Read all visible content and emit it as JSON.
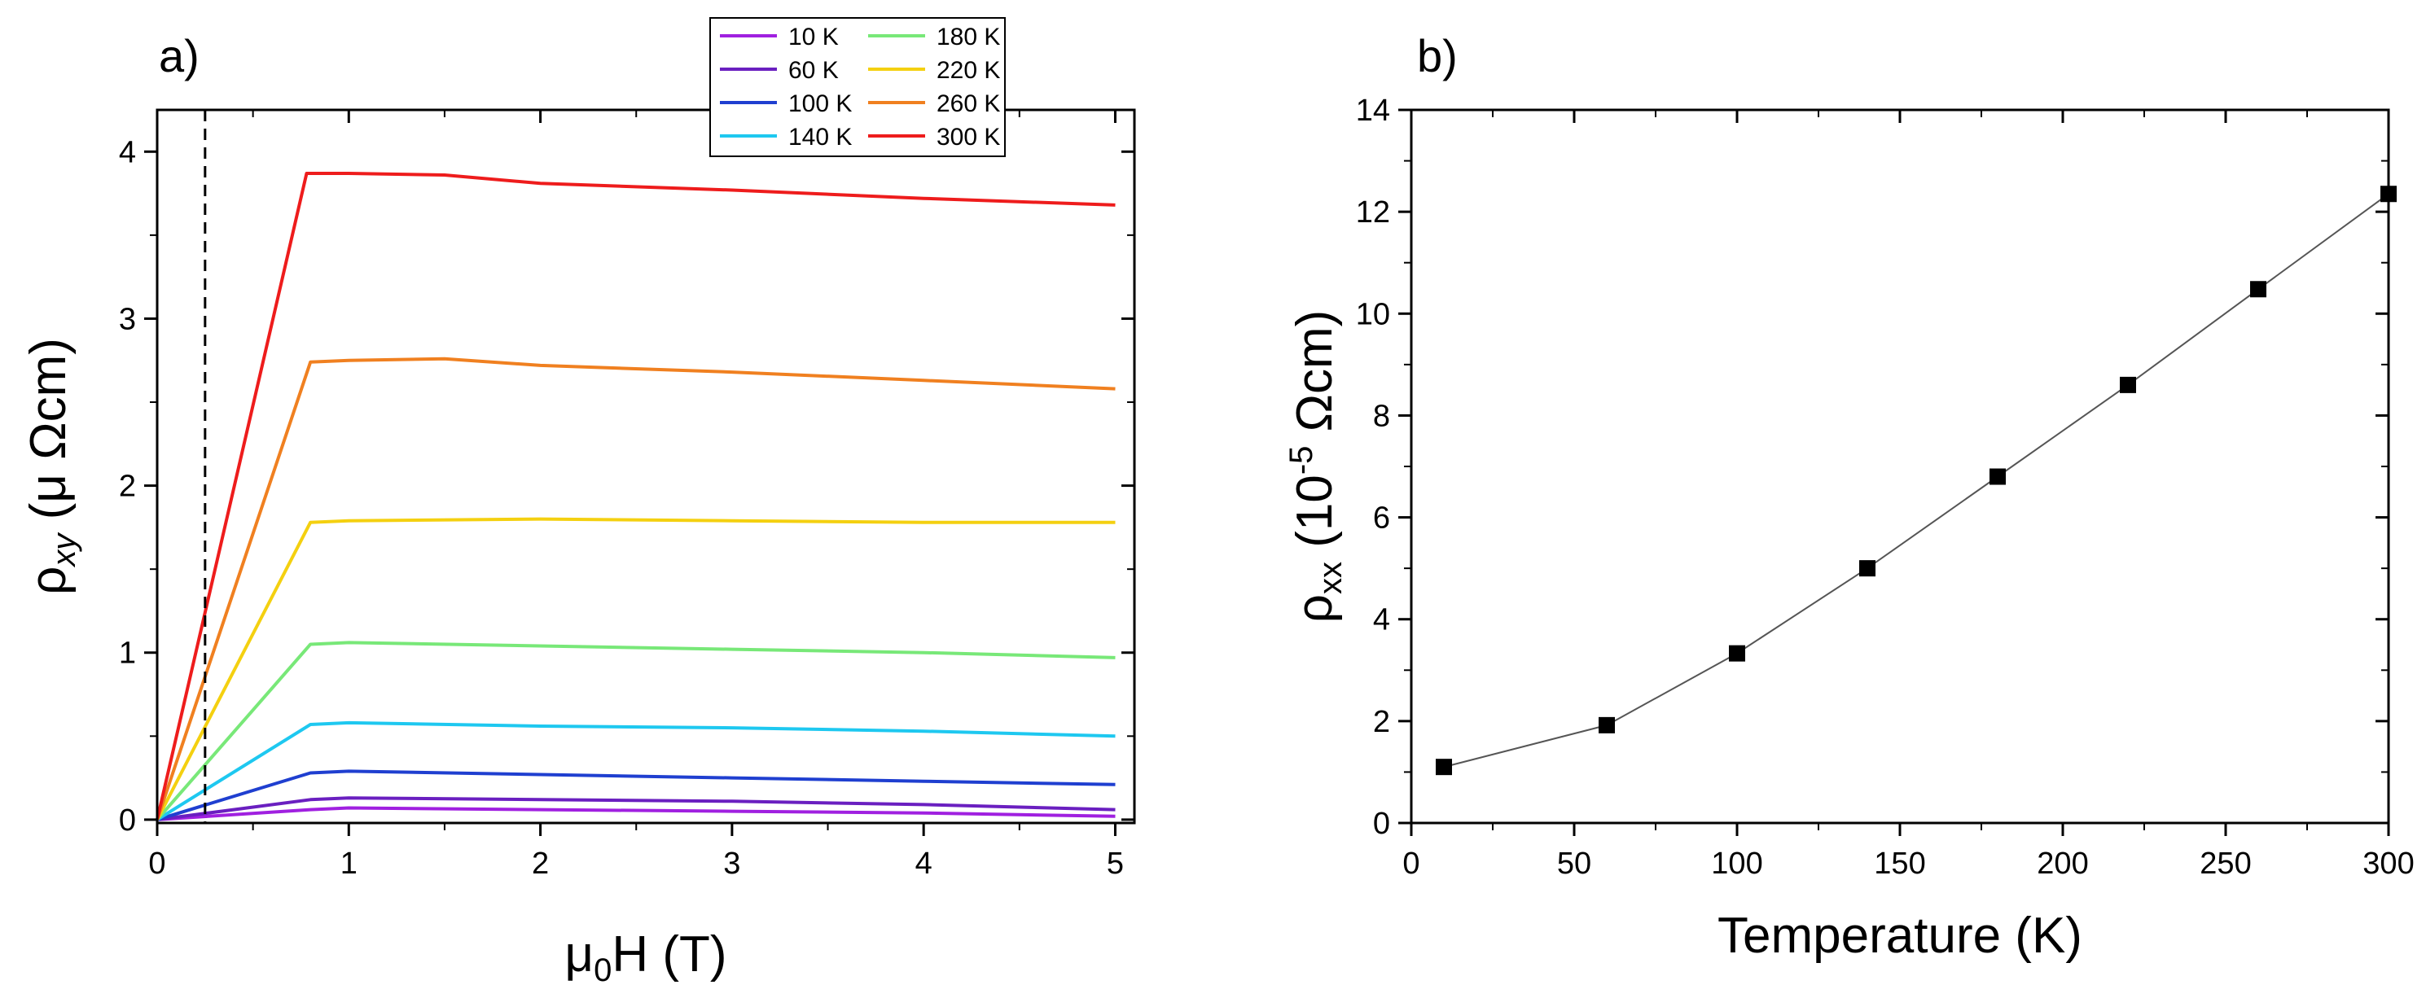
{
  "chart_data": [
    {
      "type": "line",
      "panel_label": "a)",
      "xlabel_main": "μ",
      "xlabel_sub": "0",
      "xlabel_rest": "H (T)",
      "ylabel_main": "ρ",
      "ylabel_sub": "xy",
      "ylabel_rest": " (μ Ωcm)",
      "xlim": [
        0,
        5.1
      ],
      "ylim": [
        -0.02,
        4.25
      ],
      "xticks": [
        0,
        1,
        2,
        3,
        4,
        5
      ],
      "yticks": [
        0,
        1,
        2,
        3,
        4
      ],
      "grid": false,
      "legend_position": "top-center",
      "vline_x": 0.25,
      "series": [
        {
          "name": "10 K",
          "color": "#a020e0",
          "x": [
            0,
            0.8,
            1.0,
            2.0,
            3.0,
            4.0,
            5.0
          ],
          "y": [
            0,
            0.06,
            0.07,
            0.06,
            0.05,
            0.04,
            0.02
          ]
        },
        {
          "name": "60 K",
          "color": "#6a1fc0",
          "x": [
            0,
            0.8,
            1.0,
            2.0,
            3.0,
            4.0,
            5.0
          ],
          "y": [
            0,
            0.12,
            0.13,
            0.12,
            0.11,
            0.09,
            0.06
          ]
        },
        {
          "name": "100 K",
          "color": "#1f3fd0",
          "x": [
            0,
            0.8,
            1.0,
            2.0,
            3.0,
            4.0,
            5.0
          ],
          "y": [
            0,
            0.28,
            0.29,
            0.27,
            0.25,
            0.23,
            0.21
          ]
        },
        {
          "name": "140 K",
          "color": "#1ec8f0",
          "x": [
            0,
            0.8,
            1.0,
            2.0,
            3.0,
            4.0,
            5.0
          ],
          "y": [
            0,
            0.57,
            0.58,
            0.56,
            0.55,
            0.53,
            0.5
          ]
        },
        {
          "name": "180 K",
          "color": "#78e878",
          "x": [
            0,
            0.8,
            1.0,
            2.0,
            3.0,
            4.0,
            5.0
          ],
          "y": [
            0,
            1.05,
            1.06,
            1.04,
            1.02,
            1.0,
            0.97
          ]
        },
        {
          "name": "220 K",
          "color": "#f4d010",
          "x": [
            0,
            0.8,
            1.0,
            2.0,
            3.0,
            4.0,
            5.0
          ],
          "y": [
            0,
            1.78,
            1.79,
            1.8,
            1.79,
            1.78,
            1.78
          ]
        },
        {
          "name": "260 K",
          "color": "#f08020",
          "x": [
            0,
            0.8,
            1.0,
            1.5,
            2.0,
            3.0,
            4.0,
            5.0
          ],
          "y": [
            0,
            2.74,
            2.75,
            2.76,
            2.72,
            2.68,
            2.63,
            2.58
          ]
        },
        {
          "name": "300 K",
          "color": "#ee1c1c",
          "x": [
            0,
            0.78,
            1.0,
            1.5,
            2.0,
            3.0,
            4.0,
            5.0
          ],
          "y": [
            0,
            3.87,
            3.87,
            3.86,
            3.81,
            3.77,
            3.72,
            3.68
          ]
        }
      ]
    },
    {
      "type": "scatter",
      "panel_label": "b)",
      "xlabel": "Temperature (K)",
      "ylabel_main": "ρ",
      "ylabel_sub": "xx",
      "ylabel_mid": " (10",
      "ylabel_sup": "-5",
      "ylabel_rest": " Ωcm)",
      "xlim": [
        0,
        300
      ],
      "ylim": [
        0,
        14
      ],
      "xticks": [
        0,
        50,
        100,
        150,
        200,
        250,
        300
      ],
      "yticks": [
        0,
        2,
        4,
        6,
        8,
        10,
        12,
        14
      ],
      "grid": false,
      "connected": true,
      "marker": "square",
      "x": [
        10,
        60,
        100,
        140,
        180,
        220,
        260,
        300
      ],
      "y": [
        1.1,
        1.92,
        3.33,
        5.0,
        6.8,
        8.6,
        10.48,
        12.35
      ]
    }
  ]
}
